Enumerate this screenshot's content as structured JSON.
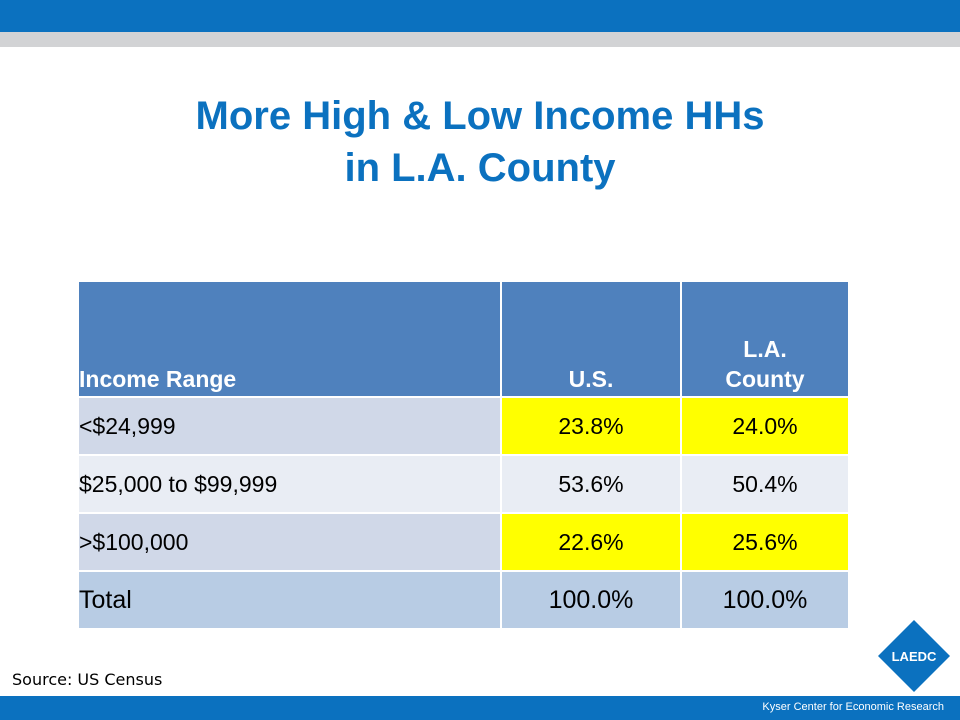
{
  "title_line1": "More High & Low Income HHs",
  "title_line2": "in L.A. County",
  "table": {
    "headers": {
      "range": "Income Range",
      "us": "U.S.",
      "la_line1": "L.A.",
      "la_line2": "County"
    },
    "rows": [
      {
        "range": "<$24,999",
        "us": "23.8%",
        "la": "24.0%"
      },
      {
        "range": "$25,000 to $99,999",
        "us": "53.6%",
        "la": "50.4%"
      },
      {
        "range": ">$100,000",
        "us": "22.6%",
        "la": "25.6%"
      },
      {
        "range": "Total",
        "us": "100.0%",
        "la": "100.0%"
      }
    ]
  },
  "source": "Source: US Census",
  "logo_text": "LAEDC",
  "footer": "Kyser Center for Economic Research",
  "colors": {
    "brand_blue": "#0b71bf",
    "header_blue": "#4f81bd",
    "highlight": "#ffff00"
  }
}
